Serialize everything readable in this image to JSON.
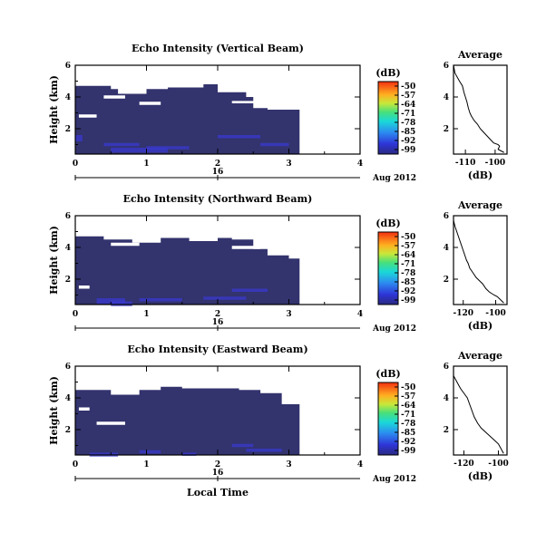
{
  "chart_data": [
    {
      "type": "heatmap",
      "title": "Echo Intensity (Vertical Beam)",
      "ylabel": "Height (km)",
      "xlim": [
        0,
        4
      ],
      "ylim": [
        0.4,
        6
      ],
      "xticks": [
        "0",
        "1",
        "2",
        "3",
        "4"
      ],
      "yticks": [
        "2",
        "4",
        "6"
      ],
      "date_day": "16",
      "date_label": "Aug 2012",
      "fill_color": "#33336e",
      "data_end_time": 3.15,
      "top_by_time": [
        [
          0.0,
          4.7
        ],
        [
          0.5,
          4.5
        ],
        [
          0.6,
          4.2
        ],
        [
          1.0,
          4.5
        ],
        [
          1.3,
          4.6
        ],
        [
          1.6,
          4.6
        ],
        [
          1.8,
          5.0
        ],
        [
          2.0,
          4.3
        ],
        [
          2.4,
          4.0
        ],
        [
          2.5,
          3.3
        ],
        [
          2.7,
          3.2
        ],
        [
          2.9,
          3.2
        ],
        [
          3.1,
          3.2
        ],
        [
          3.15,
          3.2
        ]
      ],
      "colorbar": {
        "unit": "(dB)",
        "labels": [
          "-50",
          "-57",
          "-64",
          "-71",
          "-78",
          "-85",
          "-92",
          "-99"
        ]
      },
      "average": {
        "title": "Average",
        "xlabel": "(dB)",
        "xticks": [
          "-110",
          "-100"
        ],
        "yticks": [
          "2",
          "4",
          "6"
        ],
        "xlim": [
          -114,
          -96
        ],
        "ylim": [
          0.4,
          6
        ],
        "x": [
          -114,
          -113.5,
          -112,
          -111,
          -110.5,
          -110,
          -109.5,
          -109,
          -108.5,
          -108,
          -107,
          -106,
          -105,
          -104,
          -103,
          -101.5,
          -100.5,
          -99,
          -98.5,
          -99,
          -98,
          -97
        ],
        "y": [
          6.0,
          5.5,
          5.0,
          4.7,
          4.3,
          4.0,
          3.7,
          3.3,
          3.0,
          2.8,
          2.5,
          2.3,
          2.0,
          1.8,
          1.6,
          1.3,
          1.1,
          1.0,
          0.9,
          0.7,
          0.6,
          0.5
        ]
      }
    },
    {
      "type": "heatmap",
      "title": "Echo Intensity (Northward Beam)",
      "ylabel": "Height (km)",
      "xlim": [
        0,
        4
      ],
      "ylim": [
        0.4,
        6
      ],
      "xticks": [
        "0",
        "1",
        "2",
        "3",
        "4"
      ],
      "yticks": [
        "2",
        "4",
        "6"
      ],
      "date_day": "16",
      "date_label": "Aug 2012",
      "fill_color": "#33336e",
      "data_end_time": 3.15,
      "top_by_time": [
        [
          0.0,
          4.7
        ],
        [
          0.4,
          4.5
        ],
        [
          0.8,
          4.3
        ],
        [
          1.2,
          4.6
        ],
        [
          1.6,
          4.4
        ],
        [
          2.0,
          4.6
        ],
        [
          2.2,
          4.5
        ],
        [
          2.5,
          3.9
        ],
        [
          2.7,
          3.5
        ],
        [
          3.0,
          3.3
        ],
        [
          3.15,
          3.3
        ]
      ],
      "colorbar": {
        "unit": "(dB)",
        "labels": [
          "-50",
          "-57",
          "-64",
          "-71",
          "-78",
          "-85",
          "-92",
          "-99"
        ]
      },
      "average": {
        "title": "Average",
        "xlabel": "(dB)",
        "xticks": [
          "-120",
          "-100"
        ],
        "yticks": [
          "2",
          "4",
          "6"
        ],
        "xlim": [
          -126,
          -93
        ],
        "ylim": [
          0.4,
          6
        ],
        "x": [
          -126,
          -125,
          -124,
          -123,
          -122,
          -121,
          -120,
          -119,
          -118,
          -117,
          -116,
          -114,
          -112,
          -110,
          -108,
          -106,
          -104,
          -101,
          -99,
          -97,
          -95
        ],
        "y": [
          5.7,
          5.3,
          5.0,
          4.7,
          4.4,
          4.1,
          3.8,
          3.5,
          3.2,
          3.0,
          2.7,
          2.4,
          2.1,
          1.9,
          1.7,
          1.4,
          1.2,
          1.0,
          0.9,
          0.7,
          0.5
        ]
      }
    },
    {
      "type": "heatmap",
      "title": "Echo Intensity (Eastward Beam)",
      "ylabel": "Height (km)",
      "xlabel": "Local Time",
      "xlim": [
        0,
        4
      ],
      "ylim": [
        0.4,
        6
      ],
      "xticks": [
        "0",
        "1",
        "2",
        "3",
        "4"
      ],
      "yticks": [
        "2",
        "4",
        "6"
      ],
      "date_day": "16",
      "date_label": "Aug 2012",
      "fill_color": "#33336e",
      "data_end_time": 3.15,
      "top_by_time": [
        [
          0.0,
          4.5
        ],
        [
          0.5,
          4.2
        ],
        [
          0.9,
          4.5
        ],
        [
          1.2,
          4.7
        ],
        [
          1.5,
          4.6
        ],
        [
          2.0,
          4.6
        ],
        [
          2.3,
          4.5
        ],
        [
          2.6,
          4.3
        ],
        [
          2.9,
          3.6
        ],
        [
          3.15,
          3.3
        ]
      ],
      "colorbar": {
        "unit": "(dB)",
        "labels": [
          "-50",
          "-57",
          "-64",
          "-71",
          "-78",
          "-85",
          "-92",
          "-99"
        ]
      },
      "average": {
        "title": "Average",
        "xlabel": "(dB)",
        "xticks": [
          "-120",
          "-100"
        ],
        "yticks": [
          "2",
          "4",
          "6"
        ],
        "xlim": [
          -126,
          -95
        ],
        "ylim": [
          0.4,
          6
        ],
        "x": [
          -126,
          -124,
          -122,
          -120,
          -118,
          -117,
          -116,
          -115,
          -114,
          -113,
          -112,
          -110,
          -108,
          -106,
          -104,
          -102,
          -100,
          -99,
          -98,
          -97
        ],
        "y": [
          5.4,
          5.0,
          4.6,
          4.3,
          4.0,
          3.7,
          3.4,
          3.1,
          2.8,
          2.6,
          2.4,
          2.1,
          1.9,
          1.7,
          1.5,
          1.3,
          1.1,
          0.9,
          0.7,
          0.5
        ]
      }
    }
  ]
}
